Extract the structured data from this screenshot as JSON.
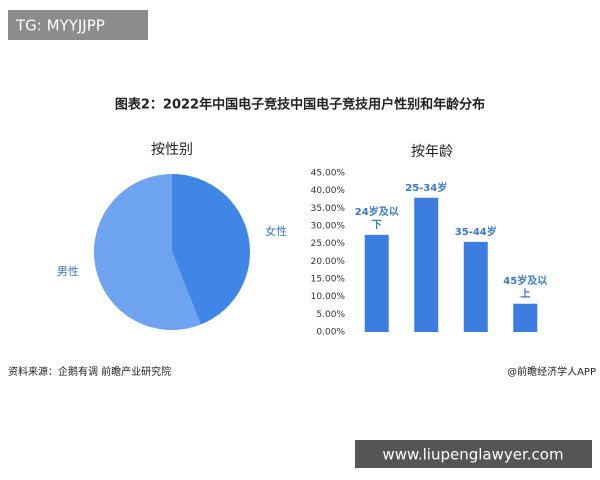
{
  "watermark": "TG: MYYJJPP",
  "title": "图表2：2022年中国电子竞技中国电子竞技用户性别和年龄分布",
  "source": "资料来源：企鹅有调 前瞻产业研究院",
  "credit": "@前瞻经济学人APP",
  "footer_watermark": "www.liupenglawyer.com",
  "chart_data": [
    {
      "type": "pie",
      "title": "按性别",
      "categories": [
        "女性",
        "男性"
      ],
      "values": [
        44,
        56
      ],
      "colors": [
        "#3f86e6",
        "#6da3ef"
      ]
    },
    {
      "type": "bar",
      "title": "按年龄",
      "categories": [
        "24岁及以下",
        "25-34岁",
        "35-44岁",
        "45岁及以上"
      ],
      "values": [
        27.5,
        38,
        25.5,
        8
      ],
      "color": "#3b7de0",
      "ylim": [
        0,
        45
      ],
      "yticks": [
        {
          "value": 0,
          "label": "0.00%"
        },
        {
          "value": 5,
          "label": "5.00%"
        },
        {
          "value": 10,
          "label": "10.00%"
        },
        {
          "value": 15,
          "label": "15.00%"
        },
        {
          "value": 20,
          "label": "20.00%"
        },
        {
          "value": 25,
          "label": "25.00%"
        },
        {
          "value": 30,
          "label": "30.00%"
        },
        {
          "value": 35,
          "label": "35.00%"
        },
        {
          "value": 40,
          "label": "40.00%"
        },
        {
          "value": 45,
          "label": "45.00%"
        }
      ]
    }
  ]
}
